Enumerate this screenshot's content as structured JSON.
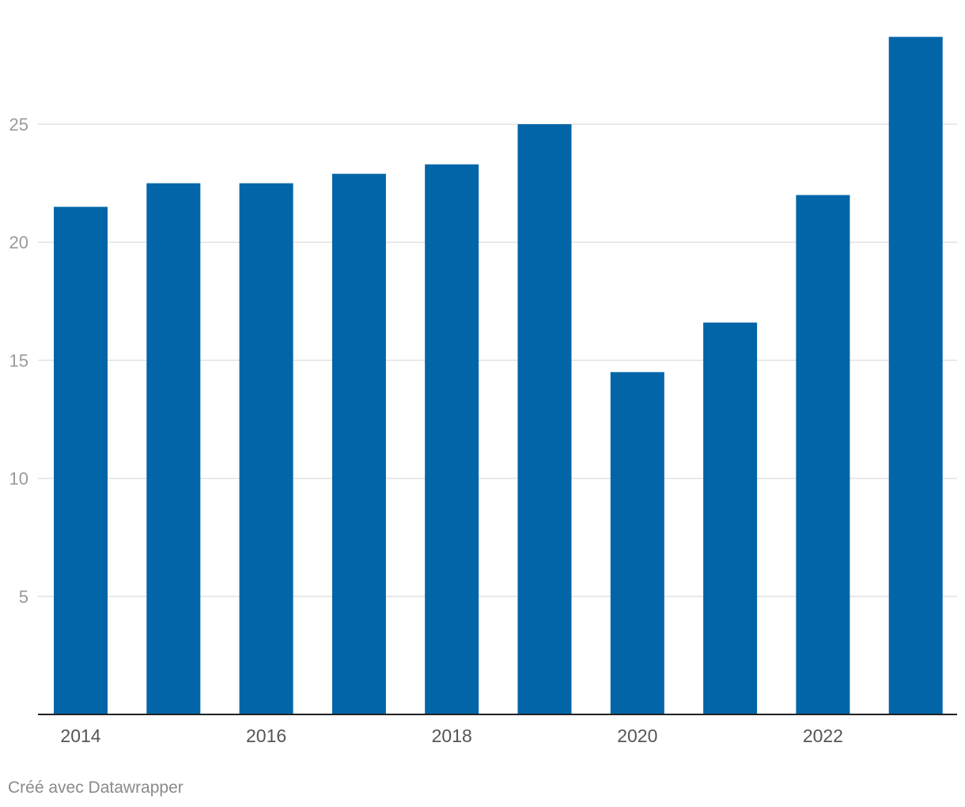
{
  "chart_data": {
    "type": "bar",
    "categories": [
      "2014",
      "2015",
      "2016",
      "2017",
      "2018",
      "2019",
      "2020",
      "2021",
      "2022",
      "2023"
    ],
    "values": [
      21.5,
      22.5,
      22.5,
      22.9,
      23.3,
      25.0,
      14.5,
      16.6,
      22.0,
      28.7
    ],
    "x_tick_labels": [
      "2014",
      "2016",
      "2018",
      "2020",
      "2022"
    ],
    "y_ticks": [
      5,
      10,
      15,
      20,
      25
    ],
    "ylim": [
      0,
      30
    ],
    "grid": true,
    "bar_color": "#0165a8"
  },
  "credit": "Créé avec Datawrapper"
}
